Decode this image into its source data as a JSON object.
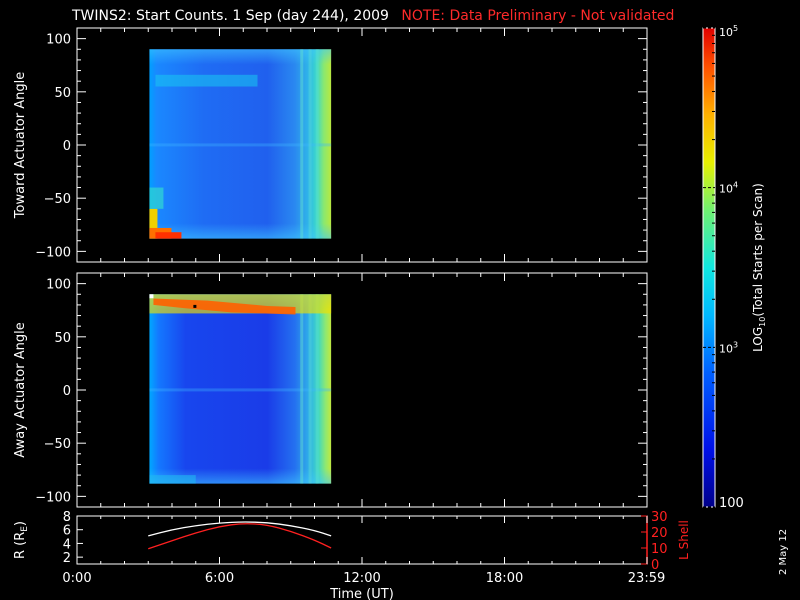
{
  "title": "TWINS2: Start Counts.  1 Sep (day 244), 2009",
  "warning": "NOTE: Data Preliminary - Not validated",
  "stamp": "2 May 12",
  "colors": {
    "background": "#000000",
    "warning": "#ff2a2a",
    "axis": "#ffffff",
    "lshell_line": "#ff2020",
    "r_line": "#ffffff"
  },
  "chart_data": [
    {
      "type": "heatmap",
      "ylabel": "Toward Actuator Angle",
      "xlim": [
        0,
        24
      ],
      "ylim": [
        -110,
        110
      ],
      "yticks": [
        -100,
        -50,
        0,
        50,
        100
      ],
      "data_extent": {
        "x": [
          3.05,
          10.7
        ],
        "y": [
          -88,
          90
        ]
      },
      "colorscale_log10_range": [
        2,
        5
      ]
    },
    {
      "type": "heatmap",
      "ylabel": "Away Actuator Angle",
      "xlim": [
        0,
        24
      ],
      "ylim": [
        -110,
        110
      ],
      "yticks": [
        -100,
        -50,
        0,
        50,
        100
      ],
      "data_extent": {
        "x": [
          3.05,
          10.7
        ],
        "y": [
          -88,
          90
        ]
      },
      "colorscale_log10_range": [
        2,
        5
      ]
    },
    {
      "type": "line",
      "xlabel": "Time (UT)",
      "xticks": [
        "0:00",
        "6:00",
        "12:00",
        "18:00",
        "23:59"
      ],
      "xtick_hours": [
        0,
        6,
        12,
        18,
        23.98
      ],
      "xlim": [
        0,
        24
      ],
      "left_axis": {
        "label": "R (RE)",
        "label_main": "R (R",
        "label_sub": "E",
        "label_end": ")",
        "ylim": [
          1,
          8
        ],
        "yticks": [
          2,
          4,
          6,
          8
        ]
      },
      "right_axis": {
        "label": "L Shell",
        "ylim": [
          0,
          30
        ],
        "yticks": [
          0,
          10,
          20,
          30
        ]
      },
      "series": [
        {
          "axis": "left",
          "color": "#ffffff",
          "x": [
            3.0,
            4.0,
            5.0,
            6.0,
            7.0,
            8.0,
            9.0,
            10.0,
            10.7
          ],
          "y": [
            5.1,
            6.0,
            6.6,
            7.0,
            7.15,
            7.05,
            6.6,
            5.9,
            5.1
          ]
        },
        {
          "axis": "right",
          "color": "#ff2020",
          "x": [
            3.0,
            4.0,
            5.0,
            6.0,
            7.0,
            8.0,
            9.0,
            10.0,
            10.7
          ],
          "y": [
            9.5,
            14.5,
            19.5,
            23.5,
            25.5,
            24.5,
            20.5,
            15.0,
            10.0
          ]
        }
      ]
    }
  ],
  "colorbar": {
    "label": "LOG10(Total Starts per Scan)",
    "label_pre": "LOG",
    "label_sub": "10",
    "label_post": "(Total Starts per Scan)",
    "log10_range": [
      2,
      5
    ],
    "ticks": [
      {
        "value": 2,
        "base": "100",
        "exp": ""
      },
      {
        "value": 3,
        "base": "10",
        "exp": "3"
      },
      {
        "value": 4,
        "base": "10",
        "exp": "4"
      },
      {
        "value": 5,
        "base": "10",
        "exp": "5"
      }
    ]
  }
}
